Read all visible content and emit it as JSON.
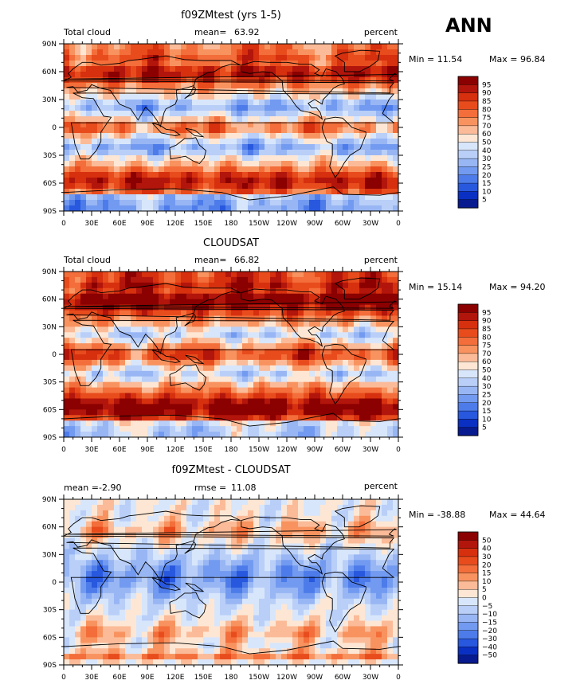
{
  "season_label": "ANN",
  "units_label": "percent",
  "lon_ticks": [
    "0",
    "30E",
    "60E",
    "90E",
    "120E",
    "150E",
    "180",
    "150W",
    "120W",
    "90W",
    "60W",
    "30W",
    "0"
  ],
  "lat_ticks": [
    "90N",
    "60N",
    "30N",
    "0",
    "30S",
    "60S",
    "90S"
  ],
  "chart_data": [
    {
      "type": "heatmap",
      "title": "f09ZMtest (yrs 1-5)",
      "variable": "Total cloud",
      "mean_label": "mean=",
      "mean_value": "63.92",
      "min_text": "Min =   11.54",
      "max_text": "Max =   96.84",
      "colorbar": [
        "95",
        "90",
        "85",
        "80",
        "75",
        "70",
        "60",
        "50",
        "40",
        "30",
        "25",
        "20",
        "15",
        "10",
        "5"
      ],
      "colors": [
        "#8b0000",
        "#b2150b",
        "#d6300f",
        "#e84c1d",
        "#f36e3a",
        "#f8935f",
        "#fbbb98",
        "#fde7d4",
        "#d8e6fb",
        "#b9cff8",
        "#98b6f4",
        "#729af0",
        "#4d7cea",
        "#2858de",
        "#0a30c3",
        "#081a8f"
      ],
      "bias": 0
    },
    {
      "type": "heatmap",
      "title": "CLOUDSAT",
      "variable": "Total cloud",
      "mean_label": "mean=",
      "mean_value": "66.82",
      "min_text": "Min =   15.14",
      "max_text": "Max =   94.20",
      "colorbar": [
        "95",
        "90",
        "85",
        "80",
        "75",
        "70",
        "60",
        "50",
        "40",
        "30",
        "25",
        "20",
        "15",
        "10",
        "5"
      ],
      "colors": [
        "#8b0000",
        "#b2150b",
        "#d6300f",
        "#e84c1d",
        "#f36e3a",
        "#f8935f",
        "#fbbb98",
        "#fde7d4",
        "#d8e6fb",
        "#b9cff8",
        "#98b6f4",
        "#729af0",
        "#4d7cea",
        "#2858de",
        "#0a30c3",
        "#081a8f"
      ],
      "bias": 0.1
    },
    {
      "type": "heatmap",
      "title": "f09ZMtest - CLOUDSAT",
      "variable": "",
      "mean_label": "mean =",
      "mean_value": "-2.90",
      "rmse_label": "rmse =",
      "rmse_value": "11.08",
      "min_text": "Min = -38.88",
      "max_text": "Max =   44.64",
      "colorbar": [
        "50",
        "40",
        "30",
        "20",
        "15",
        "10",
        "5",
        "0",
        "−5",
        "−10",
        "−15",
        "−20",
        "−30",
        "−40",
        "−50"
      ],
      "colors": [
        "#8b0000",
        "#b2150b",
        "#d6300f",
        "#e84c1d",
        "#f36e3a",
        "#f8935f",
        "#fbbb98",
        "#fde7d4",
        "#d8e6fb",
        "#b9cff8",
        "#98b6f4",
        "#729af0",
        "#4d7cea",
        "#2858de",
        "#0a30c3",
        "#081a8f"
      ],
      "bias": -0.4
    }
  ]
}
